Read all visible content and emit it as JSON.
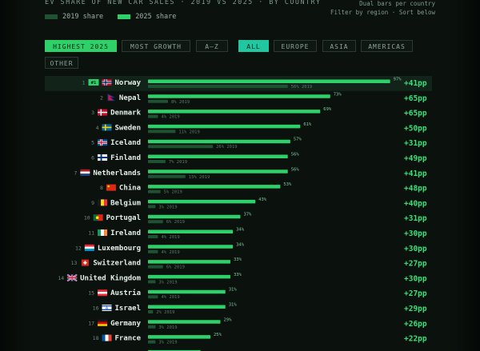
{
  "header": {
    "title": "EV SHARE OF NEW CAR SALES · 2019 VS 2025 · BY COUNTRY",
    "hint1": "Dual bars per country",
    "hint2": "Filter by region · Sort below",
    "legend_2019": "2019 share",
    "legend_2025": "2025 share"
  },
  "sort_buttons": [
    {
      "label": "HIGHEST 2025",
      "active": true
    },
    {
      "label": "MOST GROWTH",
      "active": false
    },
    {
      "label": "A–Z",
      "active": false
    }
  ],
  "region_buttons": [
    {
      "label": "ALL",
      "active": true
    },
    {
      "label": "EUROPE",
      "active": false
    },
    {
      "label": "ASIA",
      "active": false
    },
    {
      "label": "AMERICAS",
      "active": false
    },
    {
      "label": "OTHER",
      "active": false
    }
  ],
  "colors": {
    "bar_2025": "#2ed06a",
    "bar_2019": "#1f5233",
    "delta": "#39e07a",
    "highlight_row": "#12231a"
  },
  "chart_data": {
    "type": "bar",
    "xlim": [
      0,
      100
    ],
    "rows": [
      {
        "rank": "1",
        "country": "Norway",
        "flag": "no",
        "v2025": 97,
        "v2019": 56,
        "delta": "+41pp",
        "badge": "#1",
        "l2025": "97%",
        "l2019": "56% 2019"
      },
      {
        "rank": "2",
        "country": "Nepal",
        "flag": "np",
        "v2025": 73,
        "v2019": 8,
        "delta": "+65pp",
        "l2025": "73%",
        "l2019": "8% 2019"
      },
      {
        "rank": "3",
        "country": "Denmark",
        "flag": "dk",
        "v2025": 69,
        "v2019": 4,
        "delta": "+65pp",
        "l2025": "69%",
        "l2019": "4% 2019"
      },
      {
        "rank": "4",
        "country": "Sweden",
        "flag": "se",
        "v2025": 61,
        "v2019": 11,
        "delta": "+50pp",
        "l2025": "61%",
        "l2019": "11% 2019"
      },
      {
        "rank": "5",
        "country": "Iceland",
        "flag": "is",
        "v2025": 57,
        "v2019": 26,
        "delta": "+31pp",
        "l2025": "57%",
        "l2019": "26% 2019"
      },
      {
        "rank": "6",
        "country": "Finland",
        "flag": "fi",
        "v2025": 56,
        "v2019": 7,
        "delta": "+49pp",
        "l2025": "56%",
        "l2019": "7% 2019"
      },
      {
        "rank": "7",
        "country": "Netherlands",
        "flag": "nl",
        "v2025": 56,
        "v2019": 15,
        "delta": "+41pp",
        "l2025": "56%",
        "l2019": "15% 2019"
      },
      {
        "rank": "8",
        "country": "China",
        "flag": "cn",
        "v2025": 53,
        "v2019": 5,
        "delta": "+48pp",
        "l2025": "53%",
        "l2019": "5% 2019"
      },
      {
        "rank": "9",
        "country": "Belgium",
        "flag": "be",
        "v2025": 43,
        "v2019": 3,
        "delta": "+40pp",
        "l2025": "43%",
        "l2019": "3% 2019"
      },
      {
        "rank": "10",
        "country": "Portugal",
        "flag": "pt",
        "v2025": 37,
        "v2019": 6,
        "delta": "+31pp",
        "l2025": "37%",
        "l2019": "6% 2019"
      },
      {
        "rank": "11",
        "country": "Ireland",
        "flag": "ie",
        "v2025": 34,
        "v2019": 4,
        "delta": "+30pp",
        "l2025": "34%",
        "l2019": "4% 2019"
      },
      {
        "rank": "12",
        "country": "Luxembourg",
        "flag": "lu",
        "v2025": 34,
        "v2019": 4,
        "delta": "+30pp",
        "l2025": "34%",
        "l2019": "4% 2019"
      },
      {
        "rank": "13",
        "country": "Switzerland",
        "flag": "ch",
        "v2025": 33,
        "v2019": 6,
        "delta": "+27pp",
        "l2025": "33%",
        "l2019": "6% 2019"
      },
      {
        "rank": "14",
        "country": "United Kingdom",
        "flag": "gb",
        "v2025": 33,
        "v2019": 3,
        "delta": "+30pp",
        "l2025": "33%",
        "l2019": "3% 2019"
      },
      {
        "rank": "15",
        "country": "Austria",
        "flag": "at",
        "v2025": 31,
        "v2019": 4,
        "delta": "+27pp",
        "l2025": "31%",
        "l2019": "4% 2019"
      },
      {
        "rank": "16",
        "country": "Israel",
        "flag": "il",
        "v2025": 31,
        "v2019": 2,
        "delta": "+29pp",
        "l2025": "31%",
        "l2019": "2% 2019"
      },
      {
        "rank": "17",
        "country": "Germany",
        "flag": "de",
        "v2025": 29,
        "v2019": 3,
        "delta": "+26pp",
        "l2025": "29%",
        "l2019": "3% 2019"
      },
      {
        "rank": "18",
        "country": "France",
        "flag": "fr",
        "v2025": 25,
        "v2019": 3,
        "delta": "+22pp",
        "l2025": "25%",
        "l2019": "3% 2019"
      }
    ]
  }
}
